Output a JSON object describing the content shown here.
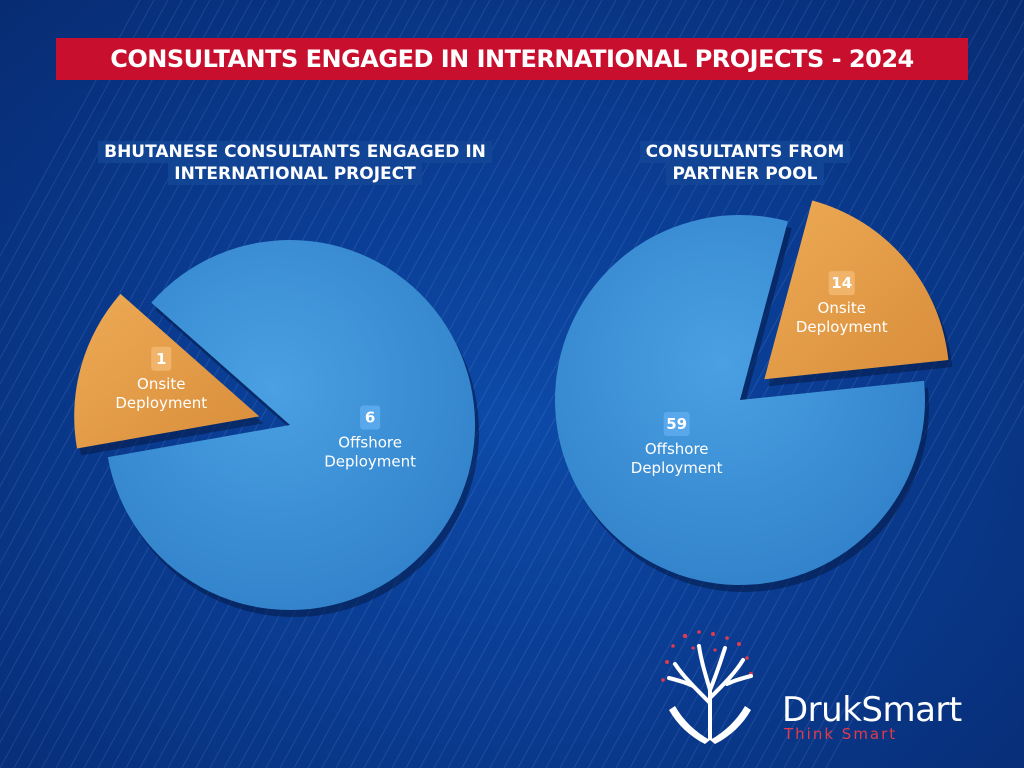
{
  "title": "CONSULTANTS ENGAGED IN INTERNATIONAL PROJECTS - 2024",
  "colors": {
    "offshore": "#3a8fd6",
    "onsite": "#e4a04e",
    "banner": "#c8102e",
    "background": "#0a3c92"
  },
  "chart_data": [
    {
      "type": "pie",
      "title_lines": [
        "BHUTANESE CONSULTANTS ENGAGED IN",
        "INTERNATIONAL PROJECT"
      ],
      "slices": [
        {
          "label_lines": [
            "Offshore",
            "Deployment"
          ],
          "value": 6,
          "color": "#3a8fd6"
        },
        {
          "label_lines": [
            "Onsite",
            "Deployment"
          ],
          "value": 1,
          "color": "#e4a04e",
          "exploded": true
        }
      ]
    },
    {
      "type": "pie",
      "title_lines": [
        "CONSULTANTS FROM",
        "PARTNER POOL"
      ],
      "slices": [
        {
          "label_lines": [
            "Offshore",
            "Deployment"
          ],
          "value": 59,
          "color": "#3a8fd6"
        },
        {
          "label_lines": [
            "Onsite",
            "Deployment"
          ],
          "value": 14,
          "color": "#e4a04e",
          "exploded": true
        }
      ]
    }
  ],
  "logo": {
    "name": "DrukSmart",
    "tagline": "Think Smart"
  }
}
